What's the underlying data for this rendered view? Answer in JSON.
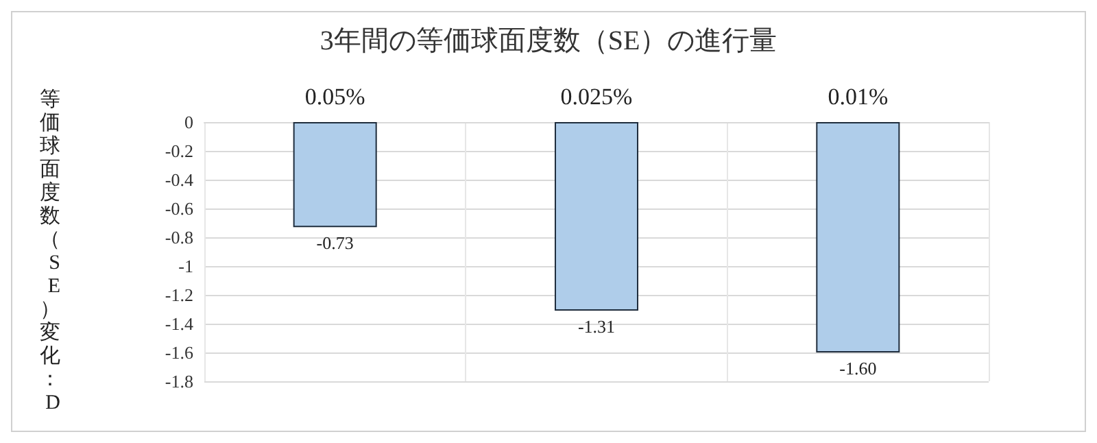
{
  "chart_data": {
    "type": "bar",
    "title": "3年間の等価球面度数（SE）の進行量",
    "ylabel": "等価球面度数（SE）変化：D",
    "categories": [
      "0.05%",
      "0.025%",
      "0.01%"
    ],
    "values": [
      -0.73,
      -1.31,
      -1.6
    ],
    "value_labels": [
      "-0.73",
      "-1.31",
      "-1.60"
    ],
    "color": "#afcdea",
    "ylim": [
      -1.8,
      0
    ],
    "yticks": [
      0,
      -0.2,
      -0.4,
      -0.6,
      -0.8,
      -1,
      -1.2,
      -1.4,
      -1.6,
      -1.8
    ],
    "grid": true
  }
}
